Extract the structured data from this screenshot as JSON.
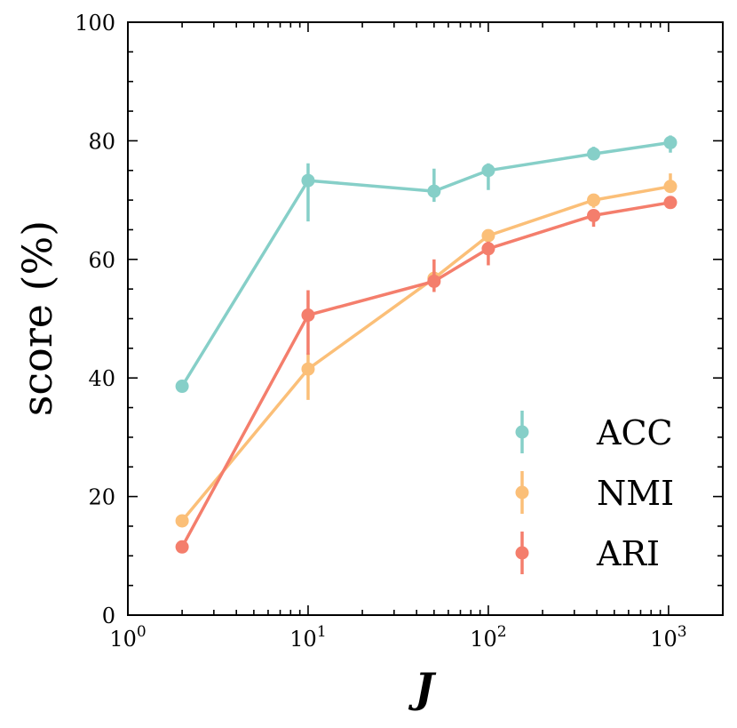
{
  "chart_data": {
    "type": "line",
    "xscale": "log",
    "xlim": [
      1,
      2000
    ],
    "ylim": [
      0,
      100
    ],
    "xlabel": "J",
    "ylabel": "score (%)",
    "y_ticks": [
      "0",
      "20",
      "40",
      "60",
      "80",
      "100"
    ],
    "x_ticks": [
      {
        "base": "10",
        "exp": "0"
      },
      {
        "base": "10",
        "exp": "1"
      },
      {
        "base": "10",
        "exp": "2"
      },
      {
        "base": "10",
        "exp": "3"
      }
    ],
    "legend_position": "lower-right",
    "x": [
      2,
      10,
      50,
      100,
      384,
      1024
    ],
    "series": [
      {
        "name": "ACC",
        "color": "#86cfc8",
        "values": [
          38.6,
          73.3,
          71.5,
          75.0,
          77.8,
          79.7
        ],
        "err_low": [
          0.2,
          6.9,
          1.8,
          3.3,
          0.8,
          1.7
        ],
        "err_high": [
          0.2,
          2.9,
          3.8,
          1.2,
          1.2,
          1.2
        ]
      },
      {
        "name": "NMI",
        "color": "#fbbf78",
        "values": [
          15.9,
          41.5,
          56.8,
          64.0,
          70.0,
          72.3
        ],
        "err_low": [
          0.2,
          5.2,
          1.5,
          1.5,
          1.3,
          1.0
        ],
        "err_high": [
          0.2,
          2.7,
          1.2,
          0.8,
          1.0,
          2.2
        ]
      },
      {
        "name": "ARI",
        "color": "#f47e6c",
        "values": [
          11.5,
          50.6,
          56.3,
          61.8,
          67.4,
          69.6
        ],
        "err_low": [
          0.2,
          6.7,
          1.8,
          2.8,
          1.9,
          0.6
        ],
        "err_high": [
          0.2,
          4.2,
          3.7,
          1.2,
          0.8,
          0.6
        ]
      }
    ]
  }
}
